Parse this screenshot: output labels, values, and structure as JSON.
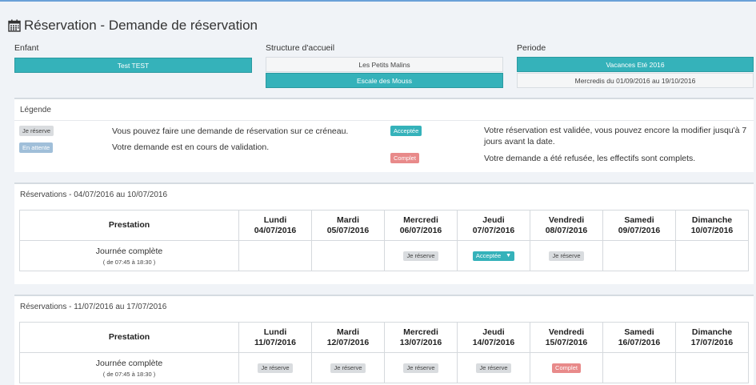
{
  "page": {
    "title": "Réservation - Demande de réservation"
  },
  "enfant": {
    "label": "Enfant",
    "options": [
      "Test TEST"
    ]
  },
  "structure": {
    "label": "Structure d'accueil",
    "options": [
      "Les Petits Malins",
      "Escale des Mouss"
    ]
  },
  "periode": {
    "label": "Periode",
    "options": [
      "Vacances Eté 2016",
      "Mercredis du 01/09/2016 au 19/10/2016"
    ]
  },
  "legend": {
    "title": "Légende",
    "items": [
      {
        "badge": "Je réserve",
        "text": "Vous pouvez faire une demande de réservation sur ce créneau."
      },
      {
        "badge": "En attente",
        "text": "Votre demande est en cours de validation."
      },
      {
        "badge": "Acceptée",
        "text": "Votre réservation est validée, vous pouvez encore la modifier jusqu'à 7 jours avant la date."
      },
      {
        "badge": "Complet",
        "text": "Votre demande a été refusée, les effectifs sont complets."
      }
    ]
  },
  "weeks": [
    {
      "title": "Réservations - 04/07/2016 au 10/07/2016",
      "header": "Prestation",
      "days": [
        {
          "name": "Lundi",
          "date": "04/07/2016"
        },
        {
          "name": "Mardi",
          "date": "05/07/2016"
        },
        {
          "name": "Mercredi",
          "date": "06/07/2016"
        },
        {
          "name": "Jeudi",
          "date": "07/07/2016"
        },
        {
          "name": "Vendredi",
          "date": "08/07/2016"
        },
        {
          "name": "Samedi",
          "date": "09/07/2016"
        },
        {
          "name": "Dimanche",
          "date": "10/07/2016"
        }
      ],
      "row": {
        "name": "Journée complète",
        "time": "( de 07:45 à 18:30 )",
        "cells": [
          "",
          "",
          "Je réserve",
          "Acceptée",
          "Je réserve",
          "",
          ""
        ]
      }
    },
    {
      "title": "Réservations - 11/07/2016 au 17/07/2016",
      "header": "Prestation",
      "days": [
        {
          "name": "Lundi",
          "date": "11/07/2016"
        },
        {
          "name": "Mardi",
          "date": "12/07/2016"
        },
        {
          "name": "Mercredi",
          "date": "13/07/2016"
        },
        {
          "name": "Jeudi",
          "date": "14/07/2016"
        },
        {
          "name": "Vendredi",
          "date": "15/07/2016"
        },
        {
          "name": "Samedi",
          "date": "16/07/2016"
        },
        {
          "name": "Dimanche",
          "date": "17/07/2016"
        }
      ],
      "row": {
        "name": "Journée complète",
        "time": "( de 07:45 à 18:30 )",
        "cells": [
          "Je réserve",
          "Je réserve",
          "Je réserve",
          "Je réserve",
          "Complet",
          "",
          ""
        ]
      }
    }
  ]
}
